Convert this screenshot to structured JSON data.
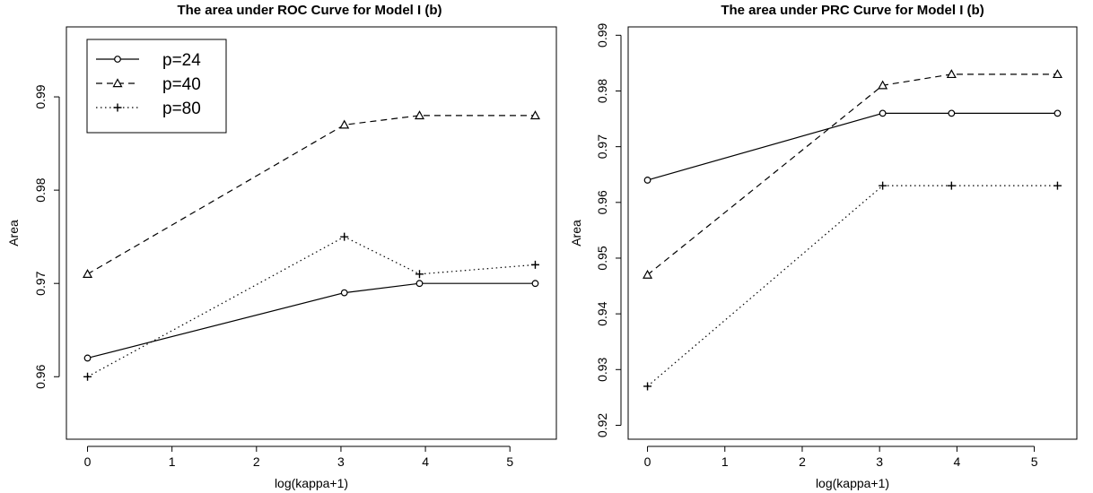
{
  "chart_data": [
    {
      "type": "line",
      "title": "The area under ROC Curve for Model I (b)",
      "xlabel": "log(kappa+1)",
      "ylabel": "Area",
      "x": [
        0,
        3.04,
        3.93,
        5.3
      ],
      "xlim": [
        -0.25,
        5.55
      ],
      "ylim": [
        0.9533,
        0.9975
      ],
      "xticks": [
        0,
        1,
        2,
        3,
        4,
        5
      ],
      "yticks": [
        0.96,
        0.97,
        0.98,
        0.99
      ],
      "ytick_labels": [
        "0.96",
        "0.97",
        "0.98",
        "0.99"
      ],
      "legend_position": "top-left",
      "series": [
        {
          "name": "p=24",
          "values": [
            0.962,
            0.969,
            0.97,
            0.97
          ],
          "line": "solid",
          "marker": "circle"
        },
        {
          "name": "p=40",
          "values": [
            0.971,
            0.987,
            0.988,
            0.988
          ],
          "line": "dashed",
          "marker": "triangle"
        },
        {
          "name": "p=80",
          "values": [
            0.96,
            0.975,
            0.971,
            0.972
          ],
          "line": "dotted",
          "marker": "plus"
        }
      ]
    },
    {
      "type": "line",
      "title": "The area under PRC Curve for Model I (b)",
      "xlabel": "log(kappa+1)",
      "ylabel": "Area",
      "x": [
        0,
        3.04,
        3.93,
        5.3
      ],
      "xlim": [
        -0.25,
        5.55
      ],
      "ylim": [
        0.9175,
        0.9915
      ],
      "xticks": [
        0,
        1,
        2,
        3,
        4,
        5
      ],
      "yticks": [
        0.92,
        0.93,
        0.94,
        0.95,
        0.96,
        0.97,
        0.98,
        0.99
      ],
      "ytick_labels": [
        "0.92",
        "0.93",
        "0.94",
        "0.95",
        "0.96",
        "0.97",
        "0.98",
        "0.99"
      ],
      "legend_position": "none",
      "series": [
        {
          "name": "p=24",
          "values": [
            0.964,
            0.976,
            0.976,
            0.976
          ],
          "line": "solid",
          "marker": "circle"
        },
        {
          "name": "p=40",
          "values": [
            0.947,
            0.981,
            0.983,
            0.983
          ],
          "line": "dashed",
          "marker": "triangle"
        },
        {
          "name": "p=80",
          "values": [
            0.927,
            0.963,
            0.963,
            0.963
          ],
          "line": "dotted",
          "marker": "plus"
        }
      ]
    }
  ]
}
